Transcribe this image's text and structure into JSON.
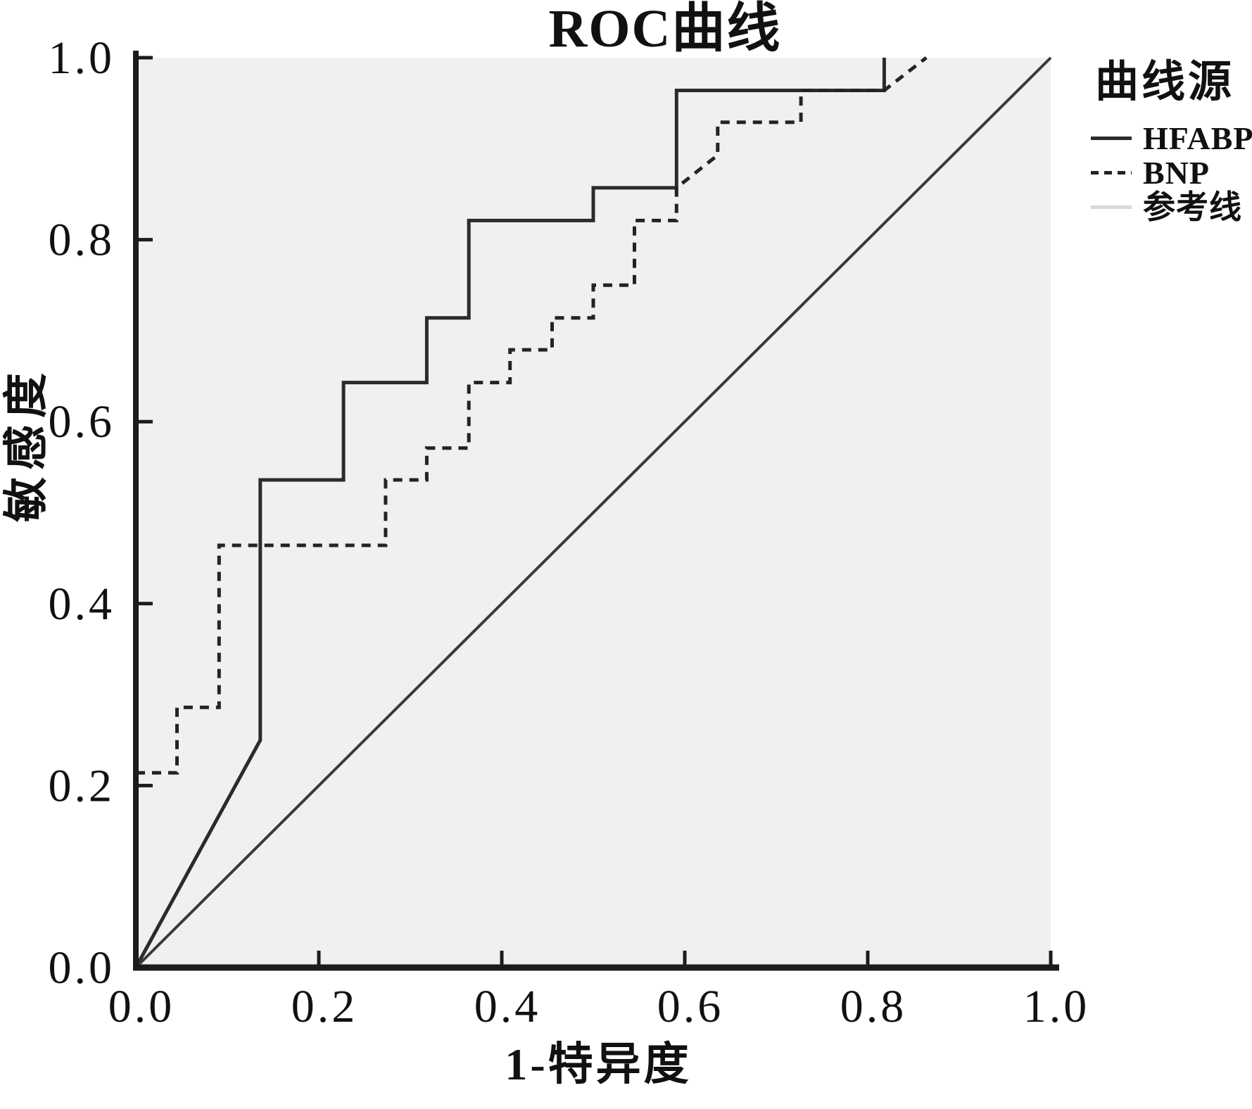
{
  "chart": {
    "title": "ROC曲线",
    "xlabel": "1-特异度",
    "ylabel": "敏感度",
    "legend": {
      "title": "曲线源",
      "items": [
        {
          "label": "HFABP",
          "style": "solid"
        },
        {
          "label": "BNP",
          "style": "dashed"
        },
        {
          "label": "参考线",
          "style": "solid-light"
        }
      ]
    }
  },
  "colors": {
    "page_bg": "#ffffff",
    "plot_bg": "#f0f0ee",
    "axis": "#1c1c1c",
    "text": "#111111",
    "hfabp": "#2b2b2b",
    "bnp": "#232323",
    "reference": "#3a3a3a",
    "legend_reference_sample": "#d8d8d8"
  },
  "chart_data": {
    "type": "line",
    "subtype": "roc-step-curves",
    "title": "ROC曲线",
    "xlabel": "1-特异度",
    "ylabel": "敏感度",
    "xlim": [
      0,
      1
    ],
    "ylim": [
      0,
      1
    ],
    "grid": false,
    "plot_background": "#f0f0ee",
    "legend_position": "right-top-outside",
    "legend_title": "曲线源",
    "x_ticks": {
      "values": [
        0,
        0.2,
        0.4,
        0.6,
        0.8,
        1.0
      ],
      "labels": [
        "0.0",
        "0.2",
        "0.4",
        "0.6",
        "0.8",
        "1.0"
      ]
    },
    "y_ticks": {
      "values": [
        0,
        0.2,
        0.4,
        0.6,
        0.8,
        1.0
      ],
      "labels": [
        "0.0",
        "0.2",
        "0.4",
        "0.6",
        "0.8",
        "1.0"
      ]
    },
    "series": [
      {
        "name": "HFABP",
        "line": "solid",
        "color_key": "hfabp",
        "width": 5,
        "points": [
          [
            0,
            0
          ],
          [
            0.136,
            0.25
          ],
          [
            0.136,
            0.536
          ],
          [
            0.227,
            0.536
          ],
          [
            0.227,
            0.643
          ],
          [
            0.318,
            0.643
          ],
          [
            0.318,
            0.714
          ],
          [
            0.364,
            0.714
          ],
          [
            0.364,
            0.821
          ],
          [
            0.5,
            0.821
          ],
          [
            0.5,
            0.857
          ],
          [
            0.591,
            0.857
          ],
          [
            0.591,
            0.964
          ],
          [
            0.818,
            0.964
          ],
          [
            0.818,
            1.0
          ]
        ]
      },
      {
        "name": "BNP",
        "line": "dashed",
        "color_key": "bnp",
        "width": 5,
        "dash": "13 10",
        "points": [
          [
            0,
            0.214
          ],
          [
            0.045,
            0.214
          ],
          [
            0.045,
            0.286
          ],
          [
            0.091,
            0.286
          ],
          [
            0.091,
            0.464
          ],
          [
            0.273,
            0.464
          ],
          [
            0.273,
            0.536
          ],
          [
            0.318,
            0.536
          ],
          [
            0.318,
            0.571
          ],
          [
            0.364,
            0.571
          ],
          [
            0.364,
            0.643
          ],
          [
            0.409,
            0.643
          ],
          [
            0.409,
            0.679
          ],
          [
            0.455,
            0.679
          ],
          [
            0.455,
            0.714
          ],
          [
            0.5,
            0.714
          ],
          [
            0.5,
            0.75
          ],
          [
            0.545,
            0.75
          ],
          [
            0.545,
            0.821
          ],
          [
            0.591,
            0.821
          ],
          [
            0.591,
            0.857
          ],
          [
            0.636,
            0.893
          ],
          [
            0.636,
            0.929
          ],
          [
            0.727,
            0.929
          ],
          [
            0.727,
            0.964
          ],
          [
            0.818,
            0.964
          ],
          [
            0.864,
            1.0
          ]
        ]
      },
      {
        "name": "参考线",
        "line": "solid",
        "color_key": "reference",
        "width": 4,
        "points": [
          [
            0,
            0
          ],
          [
            1,
            1
          ]
        ]
      }
    ]
  }
}
